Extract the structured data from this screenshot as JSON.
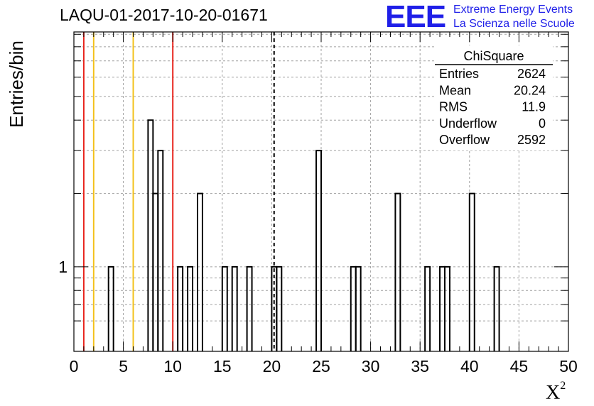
{
  "chart_data": {
    "type": "bar",
    "title": "LAQU-01-2017-10-20-01671",
    "xlabel": "Χ",
    "xlabel_sup": "2",
    "ylabel": "Entries/bin",
    "xlim": [
      0,
      50
    ],
    "ylog": true,
    "ylim": [
      0.45,
      9.2
    ],
    "xticks": [
      "0",
      "5",
      "10",
      "15",
      "20",
      "25",
      "30",
      "35",
      "40",
      "45",
      "50"
    ],
    "yticks": [
      "1"
    ],
    "grid": true,
    "bin_width": 0.5,
    "bins": [
      {
        "x": 3.5,
        "value": 1
      },
      {
        "x": 7.5,
        "value": 4
      },
      {
        "x": 8.0,
        "value": 2
      },
      {
        "x": 8.5,
        "value": 3
      },
      {
        "x": 10.5,
        "value": 1
      },
      {
        "x": 11.5,
        "value": 1
      },
      {
        "x": 12.5,
        "value": 2
      },
      {
        "x": 15.0,
        "value": 1
      },
      {
        "x": 16.0,
        "value": 1
      },
      {
        "x": 17.5,
        "value": 1
      },
      {
        "x": 20.0,
        "value": 1
      },
      {
        "x": 20.5,
        "value": 1
      },
      {
        "x": 24.5,
        "value": 3
      },
      {
        "x": 28.0,
        "value": 1
      },
      {
        "x": 28.5,
        "value": 1
      },
      {
        "x": 32.5,
        "value": 2
      },
      {
        "x": 35.5,
        "value": 1
      },
      {
        "x": 37.0,
        "value": 1
      },
      {
        "x": 37.5,
        "value": 1
      },
      {
        "x": 40.0,
        "value": 2
      },
      {
        "x": 42.5,
        "value": 1
      }
    ],
    "vlines": [
      {
        "x": 1,
        "color": "#e8251d"
      },
      {
        "x": 10,
        "color": "#e8251d"
      },
      {
        "x": 2,
        "color": "#f3c11b"
      },
      {
        "x": 6,
        "color": "#f3c11b"
      }
    ],
    "mean_line": {
      "x": 20.24,
      "style": "dashed",
      "color": "#000000"
    },
    "stats": {
      "title": "ChiSquare",
      "rows": [
        {
          "label": "Entries",
          "value": "2624"
        },
        {
          "label": "Mean",
          "value": "20.24"
        },
        {
          "label": "RMS",
          "value": "11.9"
        },
        {
          "label": "Underflow",
          "value": "0"
        },
        {
          "label": "Overflow",
          "value": "2592"
        }
      ]
    }
  },
  "logo": {
    "mark": "EEE",
    "line1": "Extreme Energy Events",
    "line2": "La Scienza nelle Scuole",
    "color": "#1f1fe8"
  }
}
